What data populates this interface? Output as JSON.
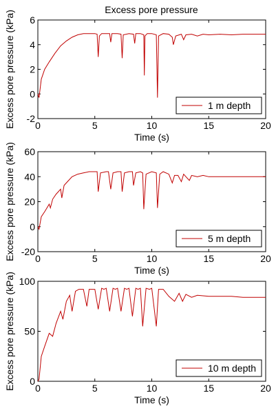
{
  "figure_title": "Excess pore pressure",
  "chart_data": [
    {
      "type": "line",
      "title": "Excess pore pressure",
      "xlabel": "Time (s)",
      "ylabel": "Excess pore pressure (kPa)",
      "xlim": [
        0,
        20
      ],
      "ylim": [
        -2,
        6
      ],
      "xticks": [
        "0",
        "5",
        "10",
        "15",
        "20"
      ],
      "yticks": [
        "-2",
        "0",
        "2",
        "4",
        "6"
      ],
      "grid": false,
      "legend_position": "bottom-right",
      "series": [
        {
          "name": "1 m depth",
          "color": "#c00000",
          "x": [
            0,
            0.1,
            0.3,
            0.6,
            1.0,
            1.5,
            2.0,
            2.5,
            3.0,
            3.5,
            4.0,
            4.5,
            5.0,
            5.2,
            5.3,
            5.4,
            5.6,
            6.0,
            6.3,
            6.4,
            6.5,
            7.0,
            7.3,
            7.4,
            7.5,
            8.0,
            8.4,
            8.5,
            8.6,
            9.0,
            9.3,
            9.35,
            9.4,
            9.6,
            10.0,
            10.4,
            10.5,
            10.6,
            11.0,
            11.5,
            11.8,
            11.9,
            12.1,
            12.6,
            12.8,
            13.0,
            13.5,
            14.0,
            14.5,
            15.0,
            16.0,
            17.0,
            18.0,
            19.0,
            20.0
          ],
          "y": [
            0,
            -0.3,
            1.2,
            2.0,
            2.6,
            3.3,
            3.9,
            4.3,
            4.6,
            4.8,
            4.9,
            4.9,
            4.9,
            4.85,
            3.0,
            4.7,
            4.9,
            4.9,
            4.9,
            4.2,
            4.9,
            4.9,
            4.85,
            2.9,
            4.8,
            4.9,
            4.85,
            4.1,
            4.9,
            4.9,
            4.8,
            1.5,
            4.7,
            4.9,
            4.9,
            4.8,
            -0.3,
            4.7,
            4.9,
            4.85,
            4.6,
            4.0,
            4.7,
            4.85,
            4.4,
            4.8,
            4.85,
            4.7,
            4.85,
            4.8,
            4.85,
            4.8,
            4.85,
            4.85,
            4.85
          ]
        }
      ]
    },
    {
      "type": "line",
      "xlabel": "Time (s)",
      "ylabel": "Excess pore pressure (kPa)",
      "xlim": [
        0,
        20
      ],
      "ylim": [
        -20,
        60
      ],
      "xticks": [
        "0",
        "5",
        "10",
        "15",
        "20"
      ],
      "yticks": [
        "-20",
        "0",
        "20",
        "40",
        "60"
      ],
      "grid": false,
      "legend_position": "bottom-right",
      "series": [
        {
          "name": "5 m depth",
          "color": "#c00000",
          "x": [
            0,
            0.1,
            0.3,
            0.6,
            1.0,
            1.1,
            1.3,
            1.6,
            2.0,
            2.1,
            2.3,
            2.6,
            3.0,
            3.5,
            4.0,
            4.5,
            5.0,
            5.2,
            5.3,
            5.5,
            6.0,
            6.2,
            6.4,
            6.6,
            7.0,
            7.3,
            7.4,
            7.6,
            8.0,
            8.3,
            8.4,
            8.6,
            9.0,
            9.2,
            9.3,
            9.5,
            10.0,
            10.4,
            10.5,
            10.7,
            11.0,
            11.5,
            11.8,
            12.0,
            12.3,
            12.6,
            12.8,
            13.0,
            13.3,
            13.5,
            14.0,
            14.5,
            15.0,
            16.0,
            17.0,
            18.0,
            19.0,
            20.0
          ],
          "y": [
            0,
            -2,
            8,
            12,
            18,
            15,
            22,
            26,
            30,
            23,
            33,
            36,
            40,
            42,
            43,
            44,
            44,
            44,
            28,
            43,
            44,
            44,
            30,
            43,
            44,
            44,
            28,
            43,
            44,
            44,
            33,
            43,
            44,
            43,
            14,
            42,
            44,
            43,
            15,
            42,
            44,
            42,
            35,
            41,
            41,
            36,
            42,
            40,
            37,
            41,
            40,
            41,
            40,
            40,
            40,
            40,
            40,
            40
          ]
        }
      ]
    },
    {
      "type": "line",
      "xlabel": "Time (s)",
      "ylabel": "Excess pore pressure (kPa)",
      "xlim": [
        0,
        20
      ],
      "ylim": [
        0,
        100
      ],
      "xticks": [
        "0",
        "5",
        "10",
        "15",
        "20"
      ],
      "yticks": [
        "0",
        "50",
        "100"
      ],
      "grid": false,
      "legend_position": "bottom-right",
      "series": [
        {
          "name": "10 m depth",
          "color": "#c00000",
          "x": [
            0,
            0.1,
            0.3,
            0.6,
            1.0,
            1.3,
            1.6,
            2.0,
            2.2,
            2.5,
            2.8,
            3.0,
            3.3,
            3.6,
            4.0,
            4.3,
            4.5,
            4.8,
            5.0,
            5.3,
            5.6,
            5.8,
            6.0,
            6.3,
            6.6,
            6.8,
            7.0,
            7.3,
            7.6,
            7.8,
            8.0,
            8.3,
            8.6,
            8.8,
            9.0,
            9.2,
            9.5,
            9.8,
            10.0,
            10.4,
            10.6,
            11.0,
            11.5,
            12.0,
            12.4,
            12.7,
            13.0,
            13.5,
            14.0,
            15.0,
            16.0,
            17.0,
            18.0,
            19.0,
            20.0
          ],
          "y": [
            0,
            2,
            25,
            35,
            48,
            45,
            58,
            70,
            62,
            80,
            86,
            70,
            90,
            92,
            92,
            75,
            92,
            92,
            92,
            72,
            93,
            92,
            93,
            70,
            93,
            92,
            93,
            70,
            93,
            92,
            93,
            65,
            93,
            92,
            93,
            55,
            93,
            92,
            93,
            55,
            92,
            92,
            85,
            80,
            88,
            80,
            87,
            84,
            86,
            85,
            85,
            85,
            84,
            84,
            84
          ]
        }
      ]
    }
  ]
}
